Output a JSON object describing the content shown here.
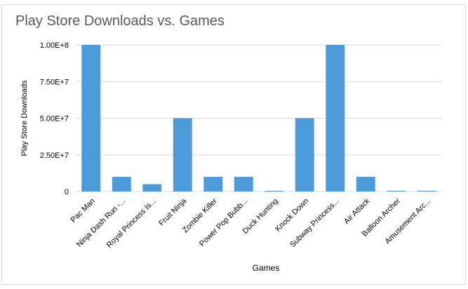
{
  "chart_data": {
    "type": "bar",
    "title": "Play Store Downloads vs. Games",
    "xlabel": "Games",
    "ylabel": "Play Store Downloads",
    "categories": [
      "Pac Man",
      "Ninja Dash Run -...",
      "Royal Princess Is...",
      "Fruit Ninja",
      "Zombie Killer",
      "Power Pop Bubb...",
      "Duck Hunting",
      "Knock Down",
      "Subway Princess...",
      "Air Attack",
      "Balloon Archer",
      "Amusement Arc..."
    ],
    "values": [
      100000000,
      10000000,
      5000000,
      50000000,
      10000000,
      10000000,
      100000,
      50000000,
      100000000,
      10000000,
      500000,
      500000
    ],
    "ylim": [
      0,
      100000000
    ],
    "yticks": [
      0,
      25000000,
      50000000,
      75000000,
      100000000
    ],
    "ytick_labels": [
      "0",
      "2.50E+7",
      "5.00E+7",
      "7.50E+7",
      "1.00E+8"
    ],
    "grid": true,
    "legend": "none",
    "bar_color": "#4e9bdc",
    "grid_color": "#d9d9d9"
  }
}
